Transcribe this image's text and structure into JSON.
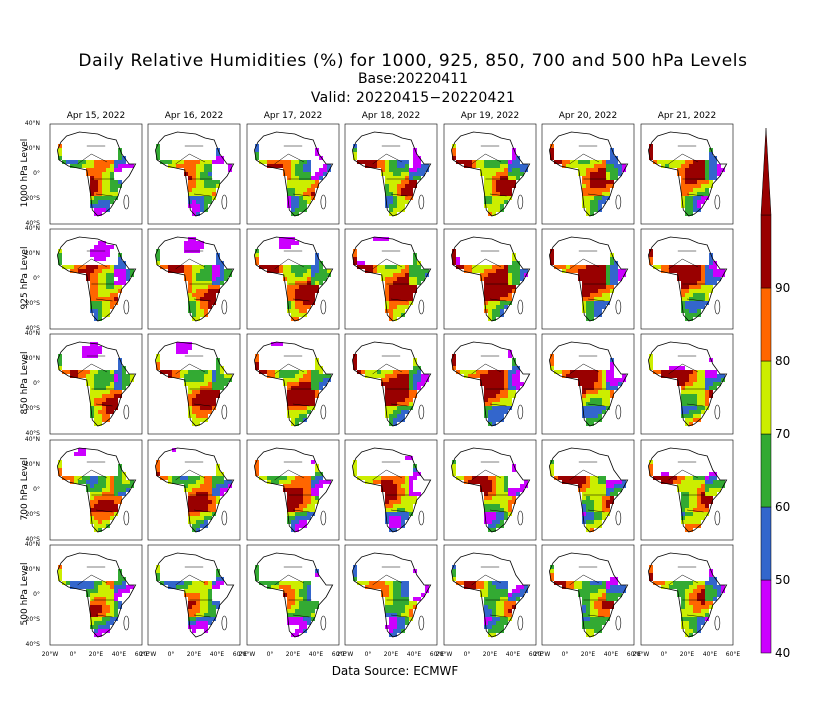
{
  "title": {
    "main": "Daily Relative Humidities (%) for 1000, 925, 850, 700 and 500 hPa Levels",
    "base": "Base:20220411",
    "valid": "Valid: 20220415−20220421"
  },
  "source": "Data Source: ECMWF",
  "chart_data": {
    "type": "heatmap",
    "title": "Daily Relative Humidities (%) for 1000, 925, 850, 700 and 500 hPa Levels",
    "columns": [
      "Apr 15, 2022",
      "Apr 16, 2022",
      "Apr 17, 2022",
      "Apr 18, 2022",
      "Apr 19, 2022",
      "Apr 20, 2022",
      "Apr 21, 2022"
    ],
    "rows": [
      "1000 hPa Level",
      "925 hPa Level",
      "850 hPa Level",
      "700 hPa Level",
      "500 hPa Level"
    ],
    "lat_ticks": [
      "40°N",
      "20°N",
      "0°",
      "20°S",
      "40°S"
    ],
    "lon_ticks": [
      "20°W",
      "0°",
      "20°E",
      "40°E",
      "60°E"
    ],
    "colorbar": {
      "ticks": [
        "40",
        "50",
        "60",
        "70",
        "80",
        "90"
      ],
      "bins": [
        {
          "range": [
            40,
            50
          ],
          "color": "#cc00ff"
        },
        {
          "range": [
            50,
            60
          ],
          "color": "#3366cc"
        },
        {
          "range": [
            60,
            70
          ],
          "color": "#33aa33"
        },
        {
          "range": [
            70,
            80
          ],
          "color": "#ccee00"
        },
        {
          "range": [
            80,
            90
          ],
          "color": "#ff6600"
        },
        {
          "range": [
            90,
            100
          ],
          "color": "#990000"
        }
      ]
    },
    "background_dry": "#ffffff"
  }
}
